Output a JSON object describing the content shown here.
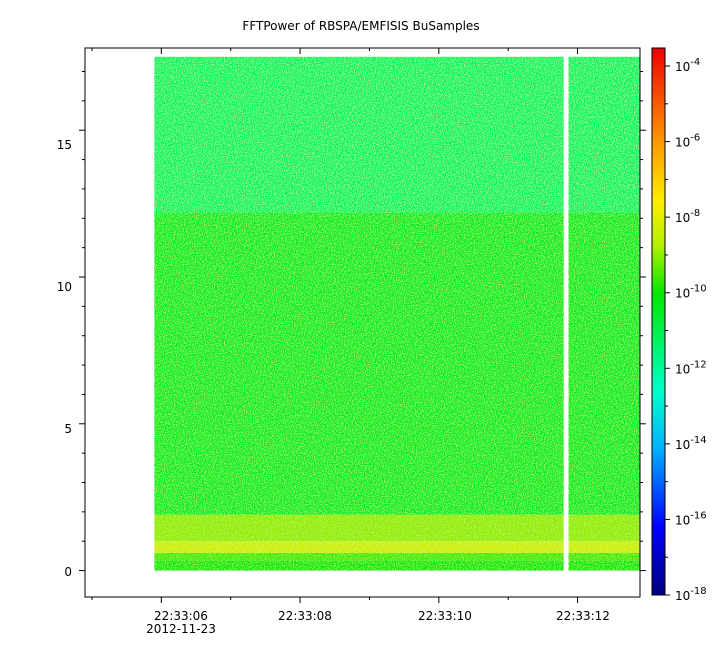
{
  "chart_data": {
    "type": "heatmap",
    "title": "FFTPower of RBSPA/EMFISIS  BuSamples",
    "xlabel": "",
    "ylabel": "",
    "x_ticks": [
      {
        "time": "22:33:06",
        "date": "2012-11-23",
        "seconds": 6
      },
      {
        "time": "22:33:08",
        "date": "",
        "seconds": 8
      },
      {
        "time": "22:33:10",
        "date": "",
        "seconds": 10
      },
      {
        "time": "22:33:12",
        "date": "",
        "seconds": 12
      }
    ],
    "xlim_seconds": [
      4.9,
      12.9
    ],
    "ylim": [
      -0.9,
      17.8
    ],
    "y_ticks": [
      0,
      5,
      10,
      15
    ],
    "colorbar": {
      "scale": "log",
      "range": [
        1e-18,
        0.0003
      ],
      "tick_labels": [
        {
          "base": "10",
          "exp": "-4",
          "value": 0.0001
        },
        {
          "base": "10",
          "exp": "-6",
          "value": 1e-06
        },
        {
          "base": "10",
          "exp": "-8",
          "value": 1e-08
        },
        {
          "base": "10",
          "exp": "-10",
          "value": 1e-10
        },
        {
          "base": "10",
          "exp": "-12",
          "value": 1e-12
        },
        {
          "base": "10",
          "exp": "-14",
          "value": 1e-14
        },
        {
          "base": "10",
          "exp": "-16",
          "value": 1e-16
        },
        {
          "base": "10",
          "exp": "-18",
          "value": 1e-18
        }
      ]
    },
    "data_extent": {
      "x_seconds": [
        5.9,
        12.9
      ],
      "y": [
        0,
        17.5
      ]
    },
    "gap": {
      "x_seconds": [
        11.8,
        11.87
      ]
    },
    "bands": [
      {
        "y": [
          0.0,
          0.35
        ],
        "log10_power": -10.2
      },
      {
        "y": [
          0.35,
          0.6
        ],
        "log10_power": -9.6
      },
      {
        "y": [
          0.6,
          1.0
        ],
        "log10_power": -8.4
      },
      {
        "y": [
          1.0,
          1.9
        ],
        "log10_power": -9.0
      },
      {
        "y": [
          1.9,
          12.2
        ],
        "log10_power": -10.6
      },
      {
        "y": [
          12.2,
          17.5
        ],
        "log10_power": -11.4
      }
    ],
    "grid": false,
    "legend": "colorbar-right"
  }
}
